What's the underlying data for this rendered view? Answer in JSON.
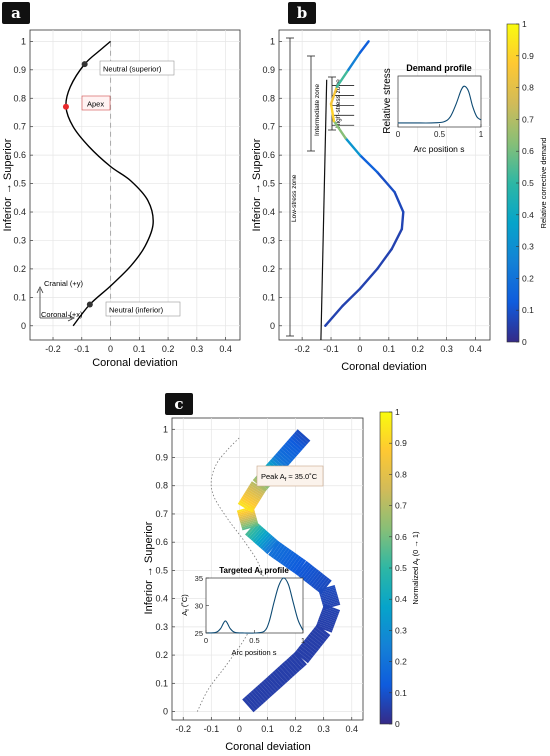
{
  "colors": {
    "curve": "#000000",
    "apex_dot": "#e8282b",
    "neutral_dot": "#333333",
    "dashed_axis": "#aaaaaa",
    "grid": "#e6e6e6",
    "inset_line": "#0d4a73",
    "badge_bg": "#111111",
    "badge_fg": "#ffffff",
    "apex_box_border": "#d04a4a",
    "apex_box_fill": "#fff2f2"
  },
  "colormap": "parula",
  "chart_data": [
    {
      "panel": "a",
      "type": "line",
      "xlabel": "Coronal deviation",
      "ylabel": "Inferior → Superior",
      "xlim": [
        -0.28,
        0.45
      ],
      "ylim": [
        -0.05,
        1.04
      ],
      "xticks": [
        "-0.2",
        "-0.1",
        "0",
        "0.1",
        "0.2",
        "0.3",
        "0.4"
      ],
      "yticks": [
        "0",
        "0.1",
        "0.2",
        "0.3",
        "0.4",
        "0.5",
        "0.6",
        "0.7",
        "0.8",
        "0.9",
        "1"
      ],
      "grid": true,
      "series": [
        {
          "x": [
            -0.13,
            -0.072,
            0.0,
            0.07,
            0.12,
            0.148,
            0.13,
            0.07,
            0.0,
            -0.075,
            -0.13,
            -0.155,
            -0.14,
            -0.09,
            -0.035,
            0.0
          ],
          "y": [
            0.0,
            0.075,
            0.14,
            0.21,
            0.28,
            0.36,
            0.44,
            0.51,
            0.56,
            0.63,
            0.7,
            0.77,
            0.84,
            0.92,
            0.97,
            1.0
          ]
        }
      ],
      "points": [
        {
          "label": "Apex",
          "x": -0.155,
          "y": 0.77
        },
        {
          "label": "Neutral (superior)",
          "x": -0.09,
          "y": 0.92
        },
        {
          "label": "Neutral (inferior)",
          "x": -0.072,
          "y": 0.075
        }
      ],
      "annotations": [
        "Cranial (+y)",
        "Coronal (+x)"
      ]
    },
    {
      "panel": "b",
      "type": "line",
      "xlabel": "Coronal deviation",
      "ylabel": "Inferior → Superior",
      "xlim": [
        -0.28,
        0.45
      ],
      "ylim": [
        -0.05,
        1.04
      ],
      "xticks": [
        "-0.2",
        "-0.1",
        "0",
        "0.1",
        "0.2",
        "0.3",
        "0.4"
      ],
      "yticks": [
        "0",
        "0.1",
        "0.2",
        "0.3",
        "0.4",
        "0.5",
        "0.6",
        "0.7",
        "0.8",
        "0.9",
        "1"
      ],
      "colorbar": {
        "label": "Relative corrective demand",
        "min": 0,
        "max": 1,
        "ticks": [
          "0",
          "0.1",
          "0.2",
          "0.3",
          "0.4",
          "0.5",
          "0.6",
          "0.7",
          "0.8",
          "0.9",
          "1"
        ]
      },
      "zones": [
        "Low-stress zone",
        "Intermediate zone",
        "High-stress zone"
      ],
      "inset": {
        "title": "Demand profile",
        "xlabel": "Arc position s",
        "ylabel": "Relative stress",
        "xticks": [
          "0",
          "0.5",
          "1"
        ],
        "x": [
          0,
          0.2,
          0.4,
          0.55,
          0.63,
          0.7,
          0.76,
          0.8,
          0.85,
          0.9,
          0.95,
          1.0
        ],
        "y": [
          0.08,
          0.08,
          0.08,
          0.1,
          0.2,
          0.45,
          0.72,
          0.8,
          0.7,
          0.4,
          0.2,
          0.14
        ]
      }
    },
    {
      "panel": "c",
      "type": "line",
      "xlabel": "Coronal deviation",
      "ylabel": "Inferior → Superior",
      "xlim": [
        -0.24,
        0.44
      ],
      "ylim": [
        -0.03,
        1.04
      ],
      "xticks": [
        "-0.2",
        "-0.1",
        "0",
        "0.1",
        "0.2",
        "0.3",
        "0.4"
      ],
      "yticks": [
        "0",
        "0.1",
        "0.2",
        "0.3",
        "0.4",
        "0.5",
        "0.6",
        "0.7",
        "0.8",
        "0.9",
        "1"
      ],
      "colorbar": {
        "label": "Normalized A_f (0 → 1)",
        "min": 0,
        "max": 1,
        "ticks": [
          "0",
          "0.1",
          "0.2",
          "0.3",
          "0.4",
          "0.5",
          "0.6",
          "0.7",
          "0.8",
          "0.9",
          "1"
        ]
      },
      "peak_label": "Peak A_f ≈ 35.0°C",
      "inset": {
        "title": "Targeted A_f profile",
        "xlabel": "Arc position s",
        "ylabel": "A_f (°C)",
        "xticks": [
          "0",
          "0.5",
          "1"
        ],
        "yticks": [
          "25",
          "30",
          "35"
        ],
        "ylim": [
          25,
          35
        ],
        "x": [
          0,
          0.1,
          0.15,
          0.2,
          0.25,
          0.3,
          0.4,
          0.5,
          0.6,
          0.65,
          0.7,
          0.75,
          0.8,
          0.85,
          0.9,
          0.95,
          1.0
        ],
        "y": [
          25.0,
          25.1,
          25.8,
          27.2,
          25.8,
          25.1,
          25.0,
          25.0,
          25.3,
          27.0,
          30.5,
          33.6,
          35.0,
          33.8,
          30.5,
          27.3,
          25.5
        ]
      }
    }
  ],
  "badges": {
    "a": "a",
    "b": "b",
    "c": "c"
  },
  "text": {
    "apex": "Apex",
    "neutral_sup": "Neutral (superior)",
    "neutral_inf": "Neutral (inferior)",
    "cranial": "Cranial (+y)",
    "coronal": "Coronal (+x)",
    "low_zone": "Low-stress zone",
    "inter_zone": "Intermediate zone",
    "high_zone": "High-stress zone",
    "peak_pre": "Peak A",
    "peak_sub": "f",
    "peak_post": " ≈ 35.0˚C",
    "inset_c_title_pre": "Targeted A",
    "inset_c_title_sub": "f",
    "inset_c_title_post": " profile",
    "inset_c_ylabel_pre": "A",
    "inset_c_ylabel_sub": "f",
    "inset_c_ylabel_post": " (˚C)",
    "cbar_c_label_pre": "Normalized A",
    "cbar_c_label_sub": "f",
    "cbar_c_label_post": " (0 → 1)"
  }
}
